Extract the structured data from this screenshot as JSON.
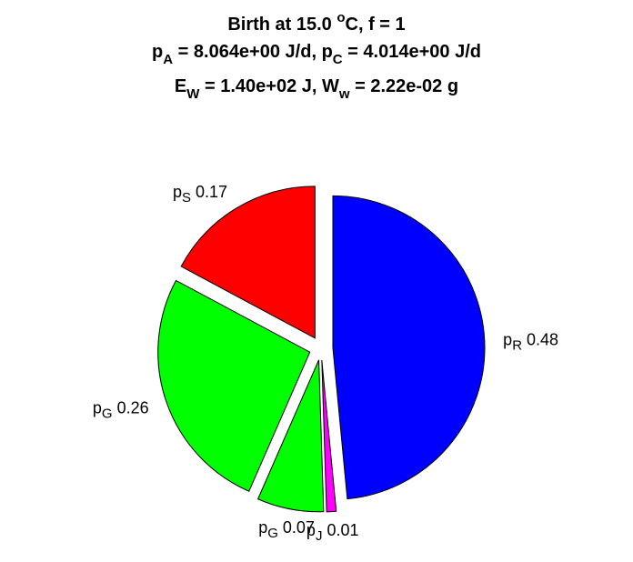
{
  "chart_data": {
    "type": "pie",
    "title": [
      [
        "Birth at 15.0 ",
        "o",
        "C, f = 1"
      ],
      [
        "p",
        "A",
        " = 8.064e+00 J/d, ",
        "p",
        "C",
        " = 4.014e+00 J/d"
      ],
      [
        "E",
        "W",
        " = 1.40e+02 J, ",
        "W",
        "w",
        " = 2.22e-02 g"
      ]
    ],
    "label_prefix": "p",
    "categories": [
      "R",
      "J",
      "G",
      "G",
      "S"
    ],
    "values": [
      0.48,
      0.01,
      0.07,
      0.26,
      0.17
    ],
    "colors": [
      "#0000ff",
      "#ff00ff",
      "#00ff00",
      "#00ff00",
      "#ff0000"
    ]
  }
}
